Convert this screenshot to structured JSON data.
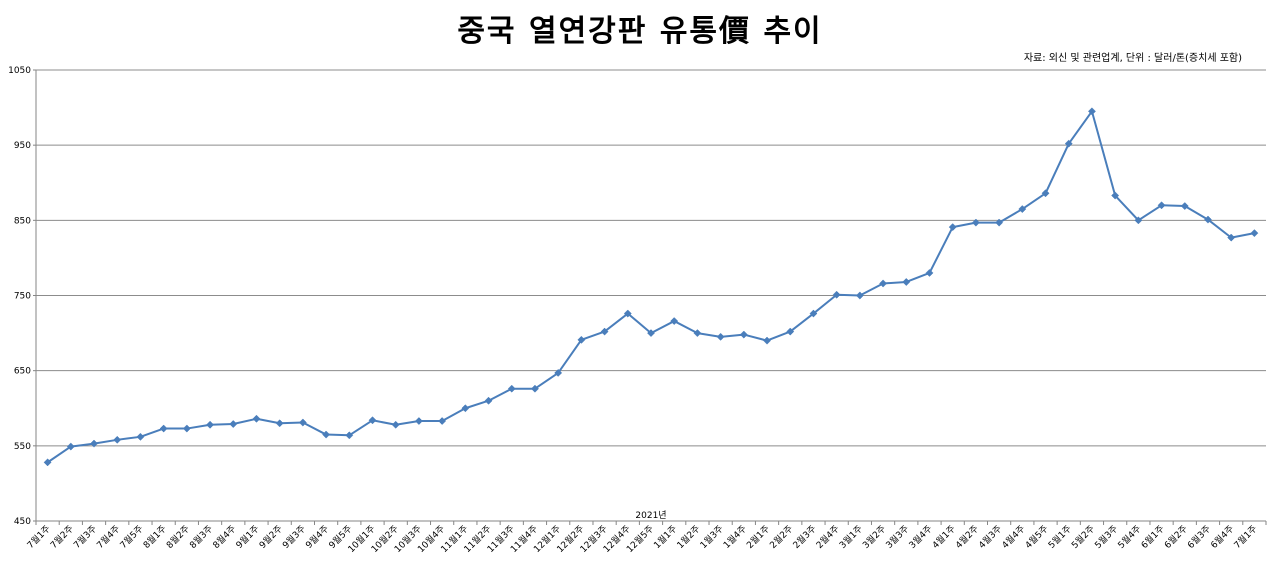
{
  "chart_data": {
    "type": "line",
    "title": "중국 열연강판 유통價 추이",
    "source_note": "자료: 외신 및 관련업계, 단위 : 달러/톤(증치세 포함)",
    "xlabel": "2021년",
    "ylabel": "",
    "ylim": [
      450,
      1050
    ],
    "yticks": [
      450,
      550,
      650,
      750,
      850,
      950,
      1050
    ],
    "grid": true,
    "legend": "none",
    "line_color": "#4a7ebb",
    "categories": [
      "7월1주",
      "7월2주",
      "7월3주",
      "7월4주",
      "7월5주",
      "8월1주",
      "8월2주",
      "8월3주",
      "8월4주",
      "9월1주",
      "9월2주",
      "9월3주",
      "9월4주",
      "9월5주",
      "10월1주",
      "10월2주",
      "10월3주",
      "10월4주",
      "11월1주",
      "11월2주",
      "11월3주",
      "11월4주",
      "12월1주",
      "12월2주",
      "12월3주",
      "12월4주",
      "12월5주",
      "1월1주",
      "1월2주",
      "1월3주",
      "1월4주",
      "2월1주",
      "2월2주",
      "2월3주",
      "2월4주",
      "3월1주",
      "3월2주",
      "3월3주",
      "3월4주",
      "4월1주",
      "4월2주",
      "4월3주",
      "4월4주",
      "4월5주",
      "5월1주",
      "5월2주",
      "5월3주",
      "5월4주",
      "6월1주",
      "6월2주",
      "6월3주",
      "6월4주",
      "7월1주"
    ],
    "series": [
      {
        "values": [
          528,
          549,
          553,
          558,
          562,
          573,
          573,
          578,
          579,
          586,
          580,
          581,
          565,
          564,
          584,
          578,
          583,
          583,
          600,
          610,
          626,
          626,
          647,
          691,
          702,
          726,
          700,
          716,
          700,
          695,
          698,
          690,
          702,
          726,
          751,
          750,
          766,
          768,
          780,
          841,
          847,
          847,
          865,
          886,
          952,
          995,
          883,
          850,
          870,
          869,
          851,
          827,
          833
        ]
      }
    ]
  }
}
